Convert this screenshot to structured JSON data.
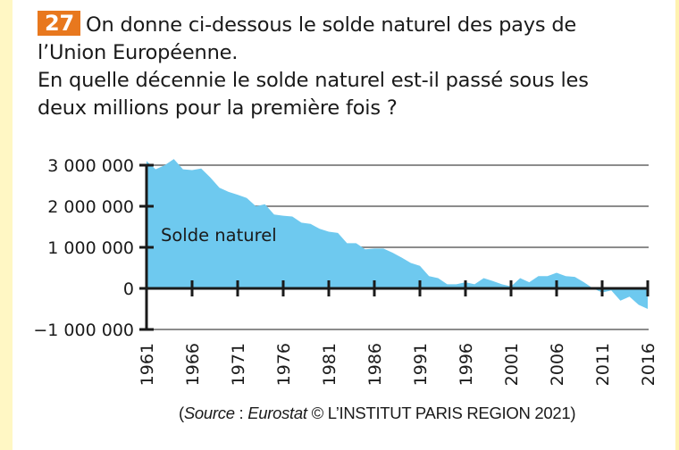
{
  "question": {
    "number": "27",
    "lines": [
      "On donne ci-dessous le solde naturel des pays de",
      "l’Union Européenne.",
      "En quelle décennie le solde naturel est-il passé sous les",
      "deux millions pour la première fois ?"
    ]
  },
  "source": {
    "open": "(",
    "source_word": "Source",
    "sep": " : ",
    "provider": "Eurostat",
    "credit": " © L’INSTITUT PARIS REGION 2021)"
  },
  "colors": {
    "area_fill": "#6ec9ef",
    "badge": "#e8781e",
    "gridline": "#8c8c8c",
    "axis": "#1a1a1a",
    "page_strip": "#fff7c4"
  },
  "chart_data": {
    "type": "area",
    "title": "",
    "series_label": "Solde naturel",
    "xlabel": "",
    "ylabel": "",
    "xlim": [
      1961,
      2016
    ],
    "ylim": [
      -1000000,
      3000000
    ],
    "grid": true,
    "y_ticks": [
      3000000,
      2000000,
      1000000,
      0,
      -1000000
    ],
    "y_tick_labels": [
      "3 000 000",
      "2 000 000",
      "1 000 000",
      "0",
      "−1 000 000"
    ],
    "x_ticks": [
      1961,
      1966,
      1971,
      1976,
      1981,
      1986,
      1991,
      1996,
      2001,
      2006,
      2011,
      2016
    ],
    "x_tick_labels": [
      "1961",
      "1966",
      "1971",
      "1976",
      "1981",
      "1986",
      "1991",
      "1996",
      "2001",
      "2006",
      "2011",
      "2016"
    ],
    "x": [
      1961,
      1962,
      1963,
      1964,
      1965,
      1966,
      1967,
      1968,
      1969,
      1970,
      1971,
      1972,
      1973,
      1974,
      1975,
      1976,
      1977,
      1978,
      1979,
      1980,
      1981,
      1982,
      1983,
      1984,
      1985,
      1986,
      1987,
      1988,
      1989,
      1990,
      1991,
      1992,
      1993,
      1994,
      1995,
      1996,
      1997,
      1998,
      1999,
      2000,
      2001,
      2002,
      2003,
      2004,
      2005,
      2006,
      2007,
      2008,
      2009,
      2010,
      2011,
      2012,
      2013,
      2014,
      2015,
      2016
    ],
    "values": [
      3100000,
      2900000,
      3000000,
      3150000,
      2900000,
      2880000,
      2920000,
      2700000,
      2450000,
      2350000,
      2280000,
      2200000,
      2000000,
      2050000,
      1800000,
      1770000,
      1750000,
      1600000,
      1570000,
      1450000,
      1380000,
      1350000,
      1100000,
      1100000,
      950000,
      970000,
      970000,
      870000,
      750000,
      620000,
      550000,
      300000,
      250000,
      100000,
      100000,
      150000,
      100000,
      250000,
      180000,
      100000,
      50000,
      250000,
      150000,
      300000,
      300000,
      380000,
      300000,
      280000,
      150000,
      0,
      -100000,
      -50000,
      -300000,
      -200000,
      -400000,
      -500000
    ]
  }
}
